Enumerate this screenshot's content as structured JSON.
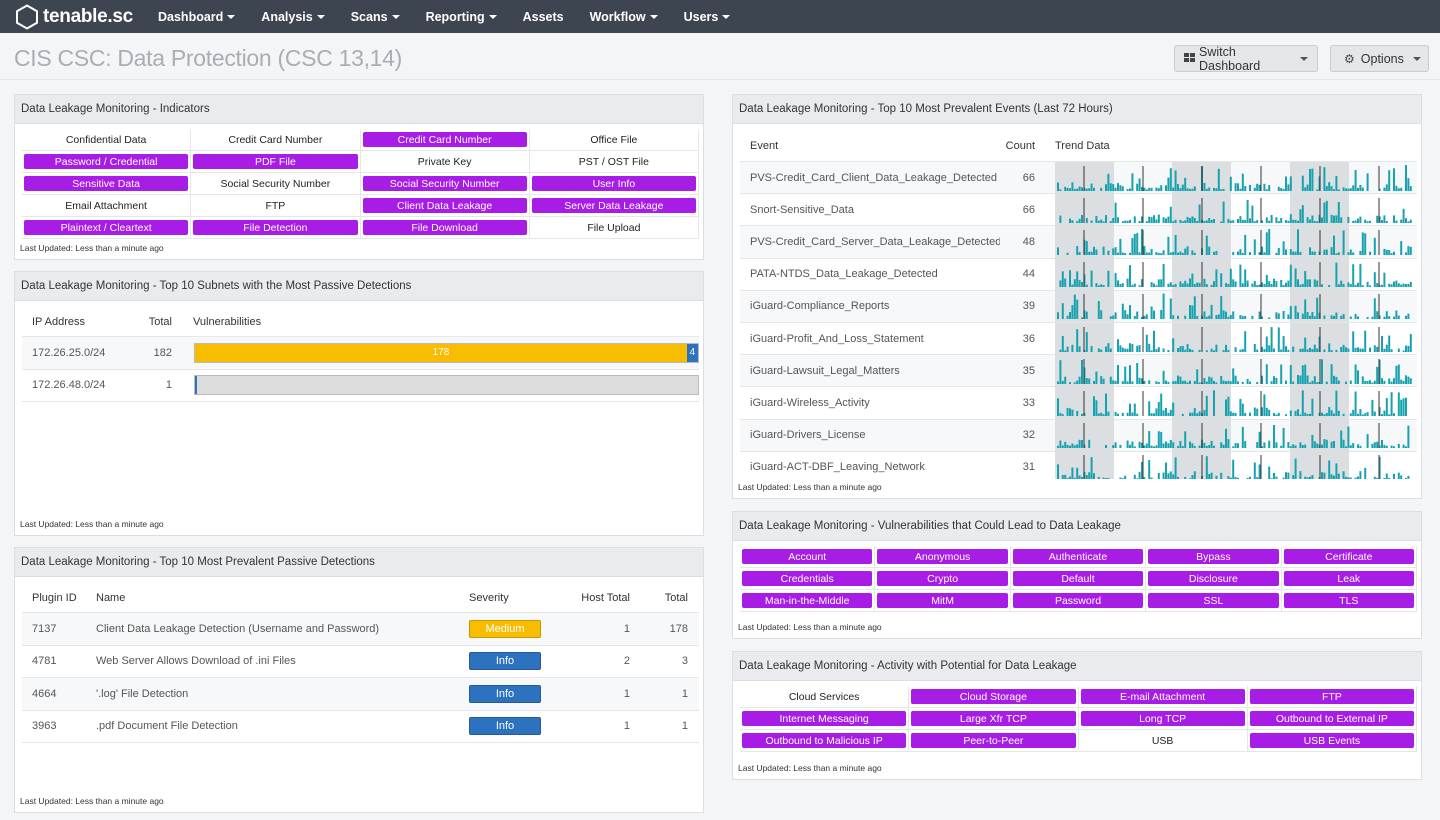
{
  "nav": {
    "brand": "tenable.sc",
    "items": [
      {
        "label": "Dashboard",
        "dropdown": true
      },
      {
        "label": "Analysis",
        "dropdown": true
      },
      {
        "label": "Scans",
        "dropdown": true
      },
      {
        "label": "Reporting",
        "dropdown": true
      },
      {
        "label": "Assets",
        "dropdown": false
      },
      {
        "label": "Workflow",
        "dropdown": true
      },
      {
        "label": "Users",
        "dropdown": true
      }
    ]
  },
  "header": {
    "title": "CIS CSC: Data Protection (CSC 13,14)",
    "switch_label": "Switch Dashboard",
    "options_label": "Options"
  },
  "colors": {
    "indicator_on": "#a81de5",
    "medium": "#f8bd00",
    "info": "#2d72bf",
    "trend_bar": "#17a2b0",
    "trend_band": "#dcdfe1"
  },
  "indicators": {
    "title": "Data Leakage Monitoring - Indicators",
    "updated": "Last Updated: Less than a minute ago",
    "cells": [
      {
        "label": "Confidential Data",
        "on": false
      },
      {
        "label": "Credit Card Number",
        "on": false
      },
      {
        "label": "Credit Card Number",
        "on": true
      },
      {
        "label": "Office File",
        "on": false
      },
      {
        "label": "Password / Credential",
        "on": true
      },
      {
        "label": "PDF File",
        "on": true
      },
      {
        "label": "Private Key",
        "on": false
      },
      {
        "label": "PST / OST File",
        "on": false
      },
      {
        "label": "Sensitive Data",
        "on": true
      },
      {
        "label": "Social Security Number",
        "on": false
      },
      {
        "label": "Social Security Number",
        "on": true
      },
      {
        "label": "User Info",
        "on": true
      },
      {
        "label": "Email Attachment",
        "on": false
      },
      {
        "label": "FTP",
        "on": false
      },
      {
        "label": "Client Data Leakage",
        "on": true
      },
      {
        "label": "Server Data Leakage",
        "on": true
      },
      {
        "label": "Plaintext / Cleartext",
        "on": true
      },
      {
        "label": "File Detection",
        "on": true
      },
      {
        "label": "File Download",
        "on": true
      },
      {
        "label": "File Upload",
        "on": false
      }
    ]
  },
  "subnets": {
    "title": "Data Leakage Monitoring - Top 10 Subnets with the Most Passive Detections",
    "updated": "Last Updated: Less than a minute ago",
    "headers": {
      "ip": "IP Address",
      "total": "Total",
      "vulns": "Vulnerabilities"
    },
    "rows": [
      {
        "ip": "172.26.25.0/24",
        "total": "182",
        "medium": 178,
        "info": 4,
        "medium_label": "178",
        "info_label": "4"
      },
      {
        "ip": "172.26.48.0/24",
        "total": "1",
        "medium": 0,
        "info": 1,
        "medium_label": "",
        "info_label": ""
      }
    ]
  },
  "passive": {
    "title": "Data Leakage Monitoring - Top 10 Most Prevalent Passive Detections",
    "updated": "Last Updated: Less than a minute ago",
    "headers": {
      "plugin": "Plugin ID",
      "name": "Name",
      "severity": "Severity",
      "host": "Host Total",
      "total": "Total"
    },
    "rows": [
      {
        "plugin": "7137",
        "name": "Client Data Leakage Detection (Username and Password)",
        "severity": "Medium",
        "host": "1",
        "total": "178"
      },
      {
        "plugin": "4781",
        "name": "Web Server Allows Download of .ini Files",
        "severity": "Info",
        "host": "2",
        "total": "3"
      },
      {
        "plugin": "4664",
        "name": "'.log' File Detection",
        "severity": "Info",
        "host": "1",
        "total": "1"
      },
      {
        "plugin": "3963",
        "name": ".pdf Document File Detection",
        "severity": "Info",
        "host": "1",
        "total": "1"
      }
    ]
  },
  "events": {
    "title": "Data Leakage Monitoring - Top 10 Most Prevalent Events (Last 72 Hours)",
    "updated": "Last Updated: Less than a minute ago",
    "headers": {
      "event": "Event",
      "count": "Count",
      "trend": "Trend Data"
    },
    "rows": [
      {
        "event": "PVS-Credit_Card_Client_Data_Leakage_Detected",
        "count": "66"
      },
      {
        "event": "Snort-Sensitive_Data",
        "count": "66"
      },
      {
        "event": "PVS-Credit_Card_Server_Data_Leakage_Detected",
        "count": "48"
      },
      {
        "event": "PATA-NTDS_Data_Leakage_Detected",
        "count": "44"
      },
      {
        "event": "iGuard-Compliance_Reports",
        "count": "39"
      },
      {
        "event": "iGuard-Profit_And_Loss_Statement",
        "count": "36"
      },
      {
        "event": "iGuard-Lawsuit_Legal_Matters",
        "count": "35"
      },
      {
        "event": "iGuard-Wireless_Activity",
        "count": "33"
      },
      {
        "event": "iGuard-Drivers_License",
        "count": "32"
      },
      {
        "event": "iGuard-ACT-DBF_Leaving_Network",
        "count": "31"
      }
    ]
  },
  "vulnlead": {
    "title": "Data Leakage Monitoring - Vulnerabilities that Could Lead to Data Leakage",
    "updated": "Last Updated: Less than a minute ago",
    "cells": [
      {
        "label": "Account",
        "on": true
      },
      {
        "label": "Anonymous",
        "on": true
      },
      {
        "label": "Authenticate",
        "on": true
      },
      {
        "label": "Bypass",
        "on": true
      },
      {
        "label": "Certificate",
        "on": true
      },
      {
        "label": "Credentials",
        "on": true
      },
      {
        "label": "Crypto",
        "on": true
      },
      {
        "label": "Default",
        "on": true
      },
      {
        "label": "Disclosure",
        "on": true
      },
      {
        "label": "Leak",
        "on": true
      },
      {
        "label": "Man-in-the-Middle",
        "on": true
      },
      {
        "label": "MitM",
        "on": true
      },
      {
        "label": "Password",
        "on": true
      },
      {
        "label": "SSL",
        "on": true
      },
      {
        "label": "TLS",
        "on": true
      }
    ]
  },
  "activity": {
    "title": "Data Leakage Monitoring - Activity with Potential for Data Leakage",
    "updated": "Last Updated: Less than a minute ago",
    "cells": [
      {
        "label": "Cloud Services",
        "on": false
      },
      {
        "label": "Cloud Storage",
        "on": true
      },
      {
        "label": "E-mail Attachment",
        "on": true
      },
      {
        "label": "FTP",
        "on": true
      },
      {
        "label": "Internet Messaging",
        "on": true
      },
      {
        "label": "Large Xfr TCP",
        "on": true
      },
      {
        "label": "Long TCP",
        "on": true
      },
      {
        "label": "Outbound to External IP",
        "on": true
      },
      {
        "label": "Outbound to Malicious IP",
        "on": true
      },
      {
        "label": "Peer-to-Peer",
        "on": true
      },
      {
        "label": "USB",
        "on": false
      },
      {
        "label": "USB Events",
        "on": true
      }
    ]
  }
}
